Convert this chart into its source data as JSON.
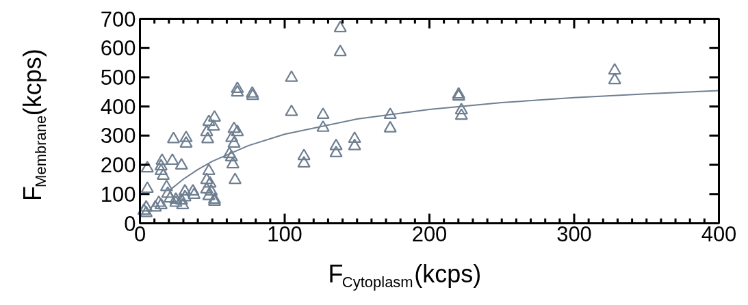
{
  "chart_data": {
    "type": "scatter",
    "xlabel": "F$_{Cytoplasm}$(kcps)",
    "ylabel": "F$_{Membrane}$(kcps)",
    "xlim": [
      0,
      400
    ],
    "ylim": [
      0,
      700
    ],
    "xticks": [
      0,
      100,
      200,
      300,
      400
    ],
    "yticks": [
      0,
      100,
      200,
      300,
      400,
      500,
      600,
      700
    ],
    "grid": false,
    "marker": "triangle",
    "series": [
      {
        "color": "#6e7f91",
        "x": [
          104.7,
          104.7,
          113.3,
          113.3,
          126.5,
          126.5,
          135.5,
          135.5,
          138.4,
          138.4,
          148.3,
          148.3,
          172.9,
          172.9,
          220.2,
          220.2,
          222.1,
          222.1,
          328,
          328,
          67.3,
          67.3,
          77.6,
          77.9,
          23.2,
          31.9,
          31.9,
          51.5,
          47.6,
          50.8,
          46.1,
          46.8,
          65,
          67.3,
          63.4,
          65,
          61.8,
          63.2,
          64.2,
          65.7,
          15.3,
          22.4,
          28.7,
          5.1,
          14.6,
          14.6,
          16.1,
          5.1,
          18.4,
          19.2,
          20.8,
          47.6,
          46.1,
          48.4,
          46.1,
          49.2,
          47.6,
          51.5,
          51.5,
          36.6,
          37.4,
          31.1,
          31.1,
          28.7,
          29.5,
          24.8,
          24.8,
          13,
          14.6,
          10.6,
          4.3,
          2.7,
          4.3
        ],
        "values": [
          498,
          381,
          230,
          205,
          371,
          327,
          264,
          240,
          668,
          586,
          289,
          264,
          371,
          325,
          441,
          434,
          387,
          368,
          523,
          490,
          460,
          448,
          444,
          436,
          288,
          292,
          273,
          362,
          347,
          331,
          312,
          288,
          323,
          312,
          292,
          273,
          237,
          226,
          202,
          148,
          214,
          214,
          198,
          188,
          195,
          179,
          163,
          118,
          124,
          101,
          85,
          179,
          148,
          136,
          116,
          109,
          93,
          81,
          74,
          109,
          97,
          109,
          89,
          78,
          62,
          81,
          70,
          70,
          62,
          54,
          54,
          43,
          35
        ]
      },
      {
        "type": "line",
        "color": "#6e7f91",
        "marker": "none",
        "x": [
          20,
          30,
          40,
          50,
          75,
          100,
          150,
          200,
          250,
          300,
          350,
          400
        ],
        "values": [
          111,
          151,
          184,
          212,
          266,
          305,
          357,
          390,
          413,
          430,
          443,
          454
        ]
      }
    ]
  }
}
